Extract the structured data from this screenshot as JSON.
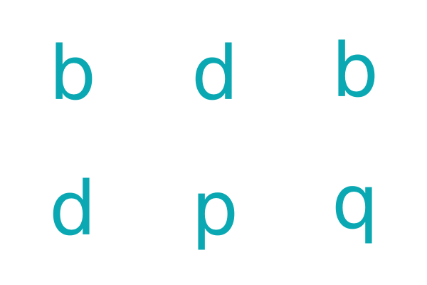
{
  "color": "#0aa8b2",
  "letters": [
    [
      "b",
      "d",
      "b"
    ],
    [
      "d",
      "p",
      "q"
    ]
  ]
}
